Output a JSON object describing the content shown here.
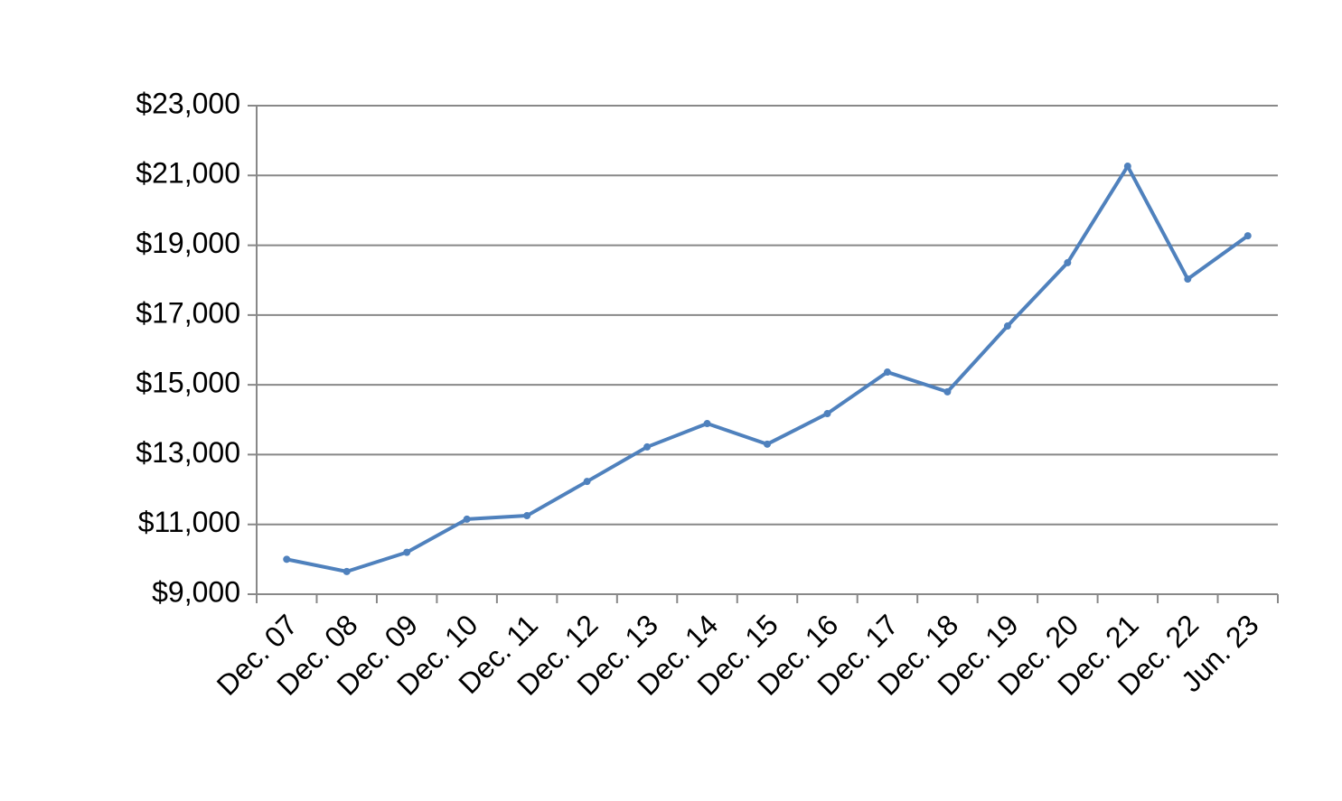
{
  "chart_data": {
    "type": "line",
    "categories": [
      "Dec. 07",
      "Dec. 08",
      "Dec. 09",
      "Dec. 10",
      "Dec. 11",
      "Dec. 12",
      "Dec. 13",
      "Dec. 14",
      "Dec. 15",
      "Dec. 16",
      "Dec. 17",
      "Dec. 18",
      "Dec. 19",
      "Dec. 20",
      "Dec. 21",
      "Dec. 22",
      "Jun. 23"
    ],
    "series": [
      {
        "color": "#4f81bd",
        "values": [
          10000,
          9650,
          10200,
          11150,
          11250,
          12230,
          13220,
          13890,
          13300,
          14175,
          15365,
          14800,
          16685,
          18500,
          21265,
          18030,
          19270
        ]
      }
    ],
    "ylim": [
      9000,
      23000
    ],
    "yticks": [
      {
        "value": 9000,
        "label": "$9,000"
      },
      {
        "value": 11000,
        "label": "$11,000"
      },
      {
        "value": 13000,
        "label": "$13,000"
      },
      {
        "value": 15000,
        "label": "$15,000"
      },
      {
        "value": 17000,
        "label": "$17,000"
      },
      {
        "value": 19000,
        "label": "$19,000"
      },
      {
        "value": 21000,
        "label": "$21,000"
      },
      {
        "value": 23000,
        "label": "$23,000"
      }
    ],
    "grid": true
  }
}
